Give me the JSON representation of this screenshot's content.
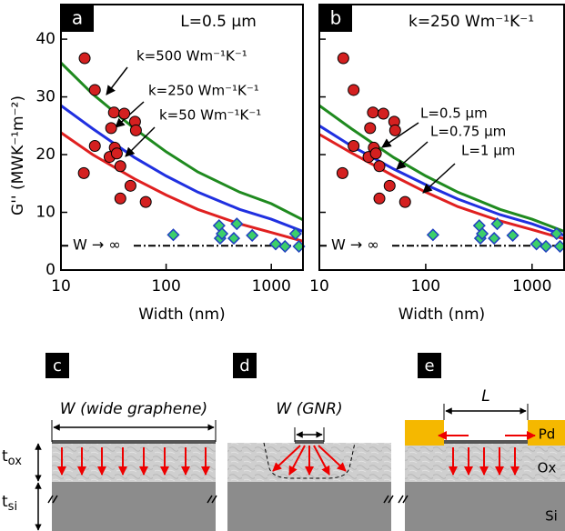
{
  "chart_data": [
    {
      "type": "scatter",
      "panel": "a",
      "annotation": "L=0.5 µm",
      "x_label": "Width (nm)",
      "y_label": "G'' (MWK⁻¹m⁻²)",
      "log_x": true,
      "xlim": [
        10,
        2000
      ],
      "xticks": [
        10,
        100,
        1000
      ],
      "ylim": [
        0,
        46
      ],
      "yticks": [
        0,
        10,
        20,
        30,
        40
      ],
      "show_ytick_labels": true,
      "series": [
        {
          "name": "k=500 Wm⁻¹K⁻¹",
          "color": "#1f8a1f",
          "style": "line",
          "x": [
            10,
            20,
            50,
            100,
            200,
            500,
            1000,
            2000
          ],
          "values": [
            35.9,
            30.5,
            24.5,
            20.5,
            17,
            13.5,
            11.5,
            8.7
          ]
        },
        {
          "name": "k=250 Wm⁻¹K⁻¹",
          "color": "#2030e0",
          "style": "line",
          "x": [
            10,
            20,
            50,
            100,
            200,
            500,
            1000,
            2000
          ],
          "values": [
            28.5,
            24.5,
            19.5,
            16.3,
            13.5,
            10.5,
            8.8,
            6.7
          ]
        },
        {
          "name": "k=50 Wm⁻¹K⁻¹",
          "color": "#e02020",
          "style": "line",
          "x": [
            10,
            20,
            50,
            100,
            200,
            500,
            1000,
            2000
          ],
          "values": [
            23.8,
            20,
            15.8,
            13,
            10.5,
            8,
            6.5,
            5
          ]
        },
        {
          "name": "W → ∞",
          "color": "#000000",
          "style": "dashdot",
          "x": [
            10,
            2000
          ],
          "values": [
            4.2,
            4.2
          ]
        },
        {
          "color": "#d42020",
          "style": "circle",
          "x": [
            16.8,
            16.5,
            21,
            21,
            31.9,
            30,
            29,
            32.5,
            34,
            36.7,
            36.7,
            40,
            45.8,
            50.6,
            51.6,
            64
          ],
          "values": [
            36.7,
            16.8,
            31.2,
            21.5,
            27.3,
            24.6,
            19.6,
            21.2,
            20.2,
            18,
            12.4,
            27.1,
            14.6,
            25.7,
            24.2,
            11.8
          ]
        },
        {
          "color": "#3ccf6a",
          "style": "diamond",
          "x": [
            117,
            319,
            326,
            340,
            440,
            470,
            658,
            1100,
            1350,
            1700,
            1830
          ],
          "values": [
            6.1,
            7.7,
            5.5,
            6.3,
            5.5,
            8,
            6,
            4.5,
            4.1,
            6.3,
            4.1
          ]
        }
      ]
    },
    {
      "type": "scatter",
      "panel": "b",
      "annotation": "k=250 Wm⁻¹K⁻¹",
      "x_label": "Width (nm)",
      "log_x": true,
      "xlim": [
        10,
        2000
      ],
      "xticks": [
        10,
        100,
        1000
      ],
      "ylim": [
        0,
        46
      ],
      "yticks": [
        0,
        10,
        20,
        30,
        40
      ],
      "show_ytick_labels": false,
      "series": [
        {
          "name": "L=0.5 µm",
          "color": "#1f8a1f",
          "style": "line",
          "x": [
            10,
            20,
            50,
            100,
            200,
            500,
            1000,
            2000
          ],
          "values": [
            28.5,
            24.5,
            19.5,
            16.3,
            13.5,
            10.5,
            8.8,
            6.7
          ]
        },
        {
          "name": "L=0.75 µm",
          "color": "#2030e0",
          "style": "line",
          "x": [
            10,
            20,
            50,
            100,
            200,
            500,
            1000,
            2000
          ],
          "values": [
            25,
            21.5,
            17.5,
            14.8,
            12.3,
            9.6,
            8,
            6
          ]
        },
        {
          "name": "L=1 µm",
          "color": "#e02020",
          "style": "line",
          "x": [
            10,
            20,
            50,
            100,
            200,
            500,
            1000,
            2000
          ],
          "values": [
            23.5,
            20.3,
            16.3,
            13.5,
            11,
            8.5,
            7,
            5.4
          ]
        },
        {
          "name": "W → ∞",
          "color": "#000000",
          "style": "dashdot",
          "x": [
            10,
            2000
          ],
          "values": [
            4.2,
            4.2
          ]
        },
        {
          "color": "#d42020",
          "style": "circle",
          "x": [
            16.8,
            16.5,
            21,
            21,
            31.9,
            30,
            29,
            32.5,
            34,
            36.7,
            36.7,
            40,
            45.8,
            50.6,
            51.6,
            64
          ],
          "values": [
            36.7,
            16.8,
            31.2,
            21.5,
            27.3,
            24.6,
            19.6,
            21.2,
            20.2,
            18,
            12.4,
            27.1,
            14.6,
            25.7,
            24.2,
            11.8
          ]
        },
        {
          "color": "#3ccf6a",
          "style": "diamond",
          "x": [
            117,
            319,
            326,
            340,
            440,
            470,
            658,
            1100,
            1350,
            1700,
            1830
          ],
          "values": [
            6.1,
            7.7,
            5.5,
            6.3,
            5.5,
            8,
            6,
            4.5,
            4.1,
            6.3,
            4.1
          ]
        }
      ]
    }
  ],
  "diagrams": {
    "panels": [
      {
        "label": "c",
        "width_label": "W (wide graphene)"
      },
      {
        "label": "d",
        "width_label": "W (GNR)"
      },
      {
        "label": "e",
        "length_label": "L",
        "layers": [
          "Pd",
          "Ox",
          "Si"
        ]
      }
    ],
    "thickness_labels": [
      {
        "main": "t",
        "sub": "ox"
      },
      {
        "main": "t",
        "sub": "si"
      }
    ]
  }
}
